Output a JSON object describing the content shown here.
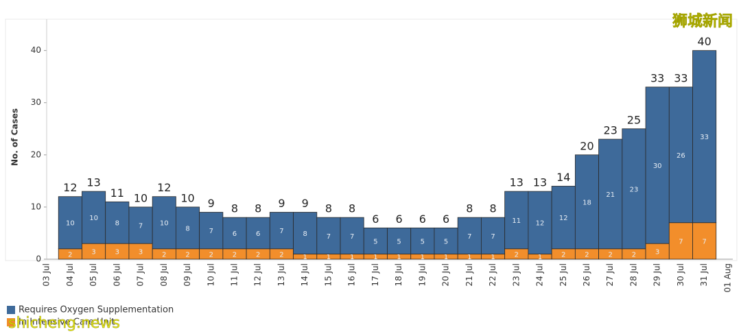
{
  "chart_data": {
    "type": "stacked_bar",
    "y_label": "No. of Cases",
    "categories": [
      "03 Jul",
      "04 Jul",
      "05 Jul",
      "06 Jul",
      "07 Jul",
      "08 Jul",
      "09 Jul",
      "10 Jul",
      "11 Jul",
      "12 Jul",
      "13 Jul",
      "14 Jul",
      "15 Jul",
      "16 Jul",
      "17 Jul",
      "18 Jul",
      "19 Jul",
      "20 Jul",
      "21 Jul",
      "22 Jul",
      "23 Jul",
      "24 Jul",
      "25 Jul",
      "26 Jul",
      "27 Jul",
      "28 Jul",
      "29 Jul",
      "30 Jul",
      "31 Jul",
      "01 Aug"
    ],
    "series": [
      {
        "name": "In Intensive Care Unit",
        "color": "#f28e2b",
        "values": [
          null,
          2,
          3,
          3,
          3,
          2,
          2,
          2,
          2,
          2,
          2,
          1,
          1,
          1,
          1,
          1,
          1,
          1,
          1,
          1,
          2,
          1,
          2,
          2,
          2,
          2,
          3,
          7,
          7,
          null
        ]
      },
      {
        "name": "Requires Oxygen Supplementation",
        "color": "#3e6a9a",
        "values": [
          null,
          10,
          10,
          8,
          7,
          10,
          8,
          7,
          6,
          6,
          7,
          8,
          7,
          7,
          5,
          5,
          5,
          5,
          7,
          7,
          11,
          12,
          12,
          18,
          21,
          23,
          30,
          26,
          33,
          null
        ]
      }
    ],
    "totals": [
      null,
      12,
      13,
      11,
      10,
      12,
      10,
      9,
      8,
      8,
      9,
      9,
      8,
      8,
      6,
      6,
      6,
      6,
      8,
      8,
      13,
      13,
      14,
      20,
      23,
      25,
      33,
      33,
      40,
      null
    ],
    "ylim": [
      0,
      46
    ],
    "yticks": [
      0,
      10,
      20,
      30,
      40
    ],
    "watermarks": [
      "狮城新闻",
      "shicheng.news"
    ]
  }
}
